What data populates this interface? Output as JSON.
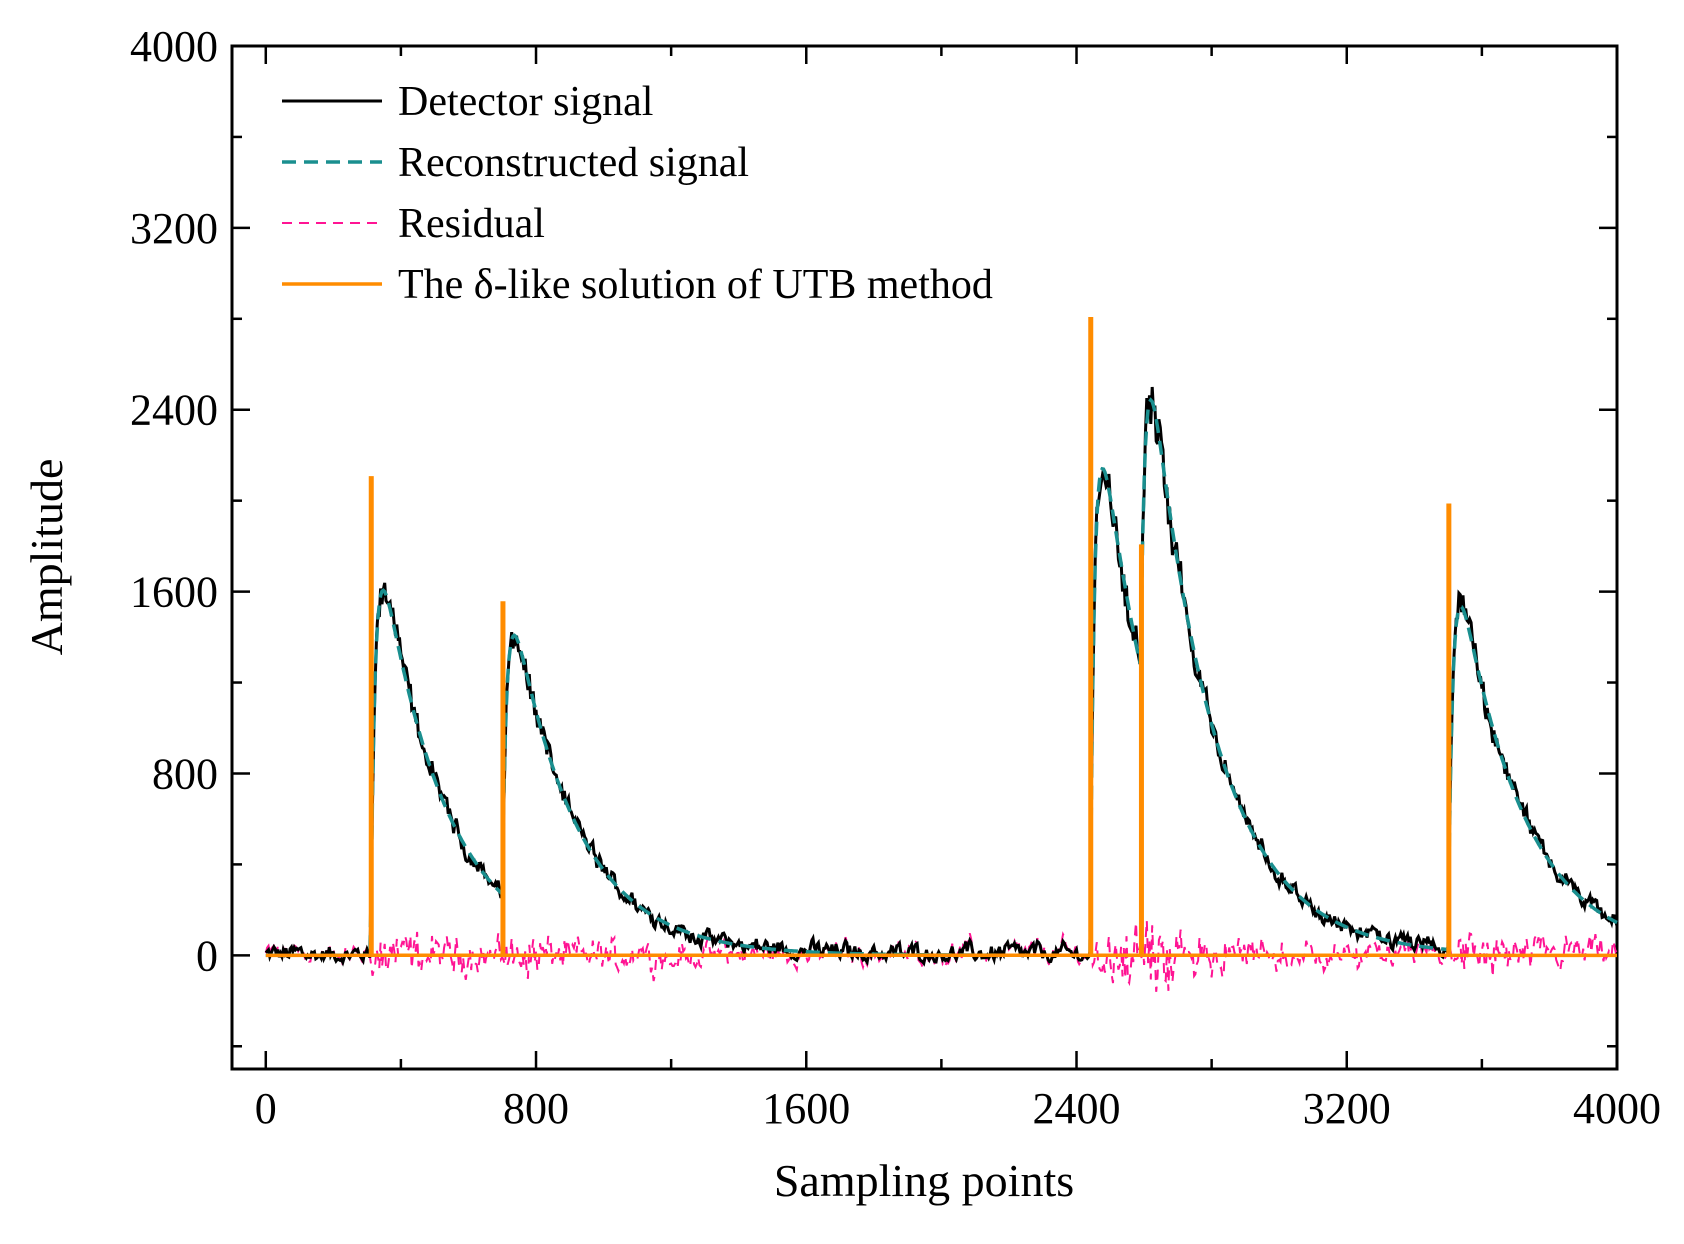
{
  "chart_data": {
    "type": "line",
    "title": "",
    "xlabel": "Sampling points",
    "ylabel": "Amplitude",
    "xlim": [
      -100,
      4000
    ],
    "ylim": [
      -500,
      4000
    ],
    "xticks": [
      0,
      800,
      1600,
      2400,
      3200,
      4000
    ],
    "yticks": [
      0,
      800,
      1600,
      2400,
      3200,
      4000
    ],
    "xtick_labels": [
      "0",
      "800",
      "1600",
      "2400",
      "3200",
      "4000"
    ],
    "ytick_labels": [
      "0",
      "800",
      "1600",
      "2400",
      "3200",
      "4000"
    ],
    "legend_position": "top-left",
    "pulses": [
      {
        "onset": 310,
        "amplitude": 2100
      },
      {
        "onset": 700,
        "amplitude": 1550
      },
      {
        "onset": 2440,
        "amplitude": 2800
      },
      {
        "onset": 2590,
        "amplitude": 1800
      },
      {
        "onset": 3500,
        "amplitude": 1980
      }
    ],
    "series": [
      {
        "name": "Detector signal",
        "color": "#000000",
        "style": "solid"
      },
      {
        "name": "Reconstructed signal",
        "color": "#1a8f8f",
        "style": "dashed"
      },
      {
        "name": "Residual",
        "color": "#ff1493",
        "style": "dashed"
      },
      {
        "name": "The δ-like solution of UTB method",
        "color": "#ff8c00",
        "style": "solid"
      }
    ]
  }
}
